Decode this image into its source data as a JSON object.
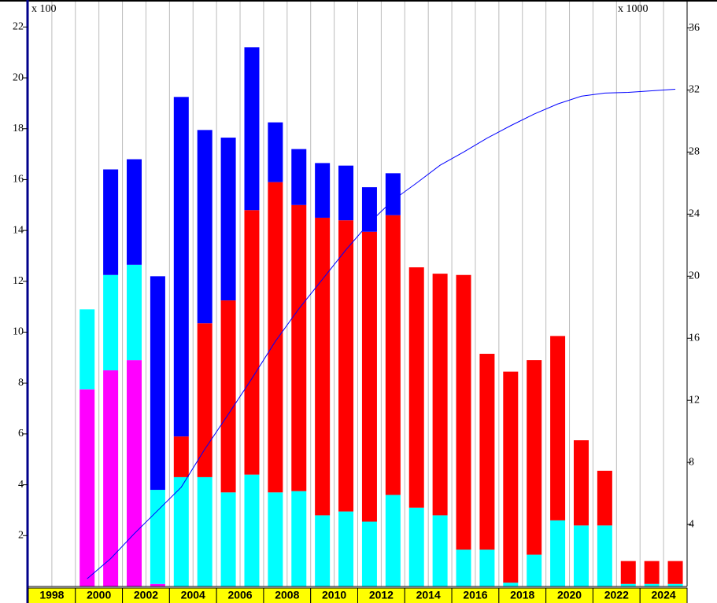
{
  "chart_data": {
    "type": "bar",
    "stacked": true,
    "annotations": [
      "x 100",
      "x 1000"
    ],
    "categories": [
      "1998",
      null,
      "2000",
      null,
      "2002",
      null,
      "2004",
      null,
      "2006",
      null,
      "2008",
      null,
      "2010",
      null,
      "2012",
      null,
      "2014",
      null,
      "2016",
      null,
      "2018",
      null,
      "2020",
      null,
      "2022",
      null,
      "2024",
      null
    ],
    "series": [
      {
        "color": "#ff00ff",
        "values": [
          null,
          null,
          7.75,
          8.5,
          8.9,
          0.1,
          0,
          0,
          0,
          0,
          0,
          0,
          0,
          0,
          0,
          0,
          0,
          0,
          0,
          0,
          0,
          0,
          0,
          0,
          0,
          0,
          0,
          0
        ]
      },
      {
        "color": "#00ffff",
        "values": [
          null,
          null,
          3.15,
          3.75,
          3.75,
          3.7,
          4.3,
          4.3,
          3.7,
          4.4,
          3.7,
          3.75,
          2.8,
          2.95,
          2.55,
          3.6,
          3.1,
          2.8,
          1.45,
          1.45,
          0.15,
          1.25,
          2.6,
          2.4,
          2.4,
          0.1,
          0.1,
          0.1
        ]
      },
      {
        "color": "#ff0000",
        "values": [
          null,
          null,
          0,
          0,
          0,
          0,
          1.6,
          6.05,
          7.55,
          10.4,
          12.2,
          11.25,
          11.7,
          11.45,
          11.4,
          11.0,
          9.45,
          9.5,
          10.8,
          7.7,
          8.3,
          7.65,
          7.25,
          3.35,
          2.15,
          0.9,
          0.9,
          0.9
        ]
      },
      {
        "color": "#0000ff",
        "values": [
          null,
          null,
          0,
          4.15,
          4.15,
          8.4,
          13.35,
          7.6,
          6.4,
          6.4,
          2.35,
          2.2,
          2.15,
          2.15,
          1.75,
          1.65,
          0,
          0,
          0,
          0,
          0,
          0,
          0,
          0,
          0,
          0,
          0,
          0
        ]
      },
      {
        "type": "line",
        "axis": "y2",
        "color": "#0000ff",
        "values": [
          null,
          null,
          0.5,
          1.8,
          3.4,
          4.9,
          6.4,
          8.85,
          11.1,
          13.4,
          15.8,
          17.9,
          19.8,
          21.7,
          23.45,
          24.9,
          26.0,
          27.15,
          28.0,
          28.9,
          29.7,
          30.45,
          31.1,
          31.6,
          31.8,
          31.85,
          31.95,
          32.05
        ]
      }
    ],
    "ylim": [
      0,
      23
    ],
    "yticks": [
      2,
      4,
      6,
      8,
      10,
      12,
      14,
      16,
      18,
      20,
      22
    ],
    "y2lim": [
      0,
      37.7
    ],
    "y2ticks": [
      4,
      8,
      12,
      16,
      20,
      24,
      28,
      32,
      36
    ],
    "grid": true
  }
}
